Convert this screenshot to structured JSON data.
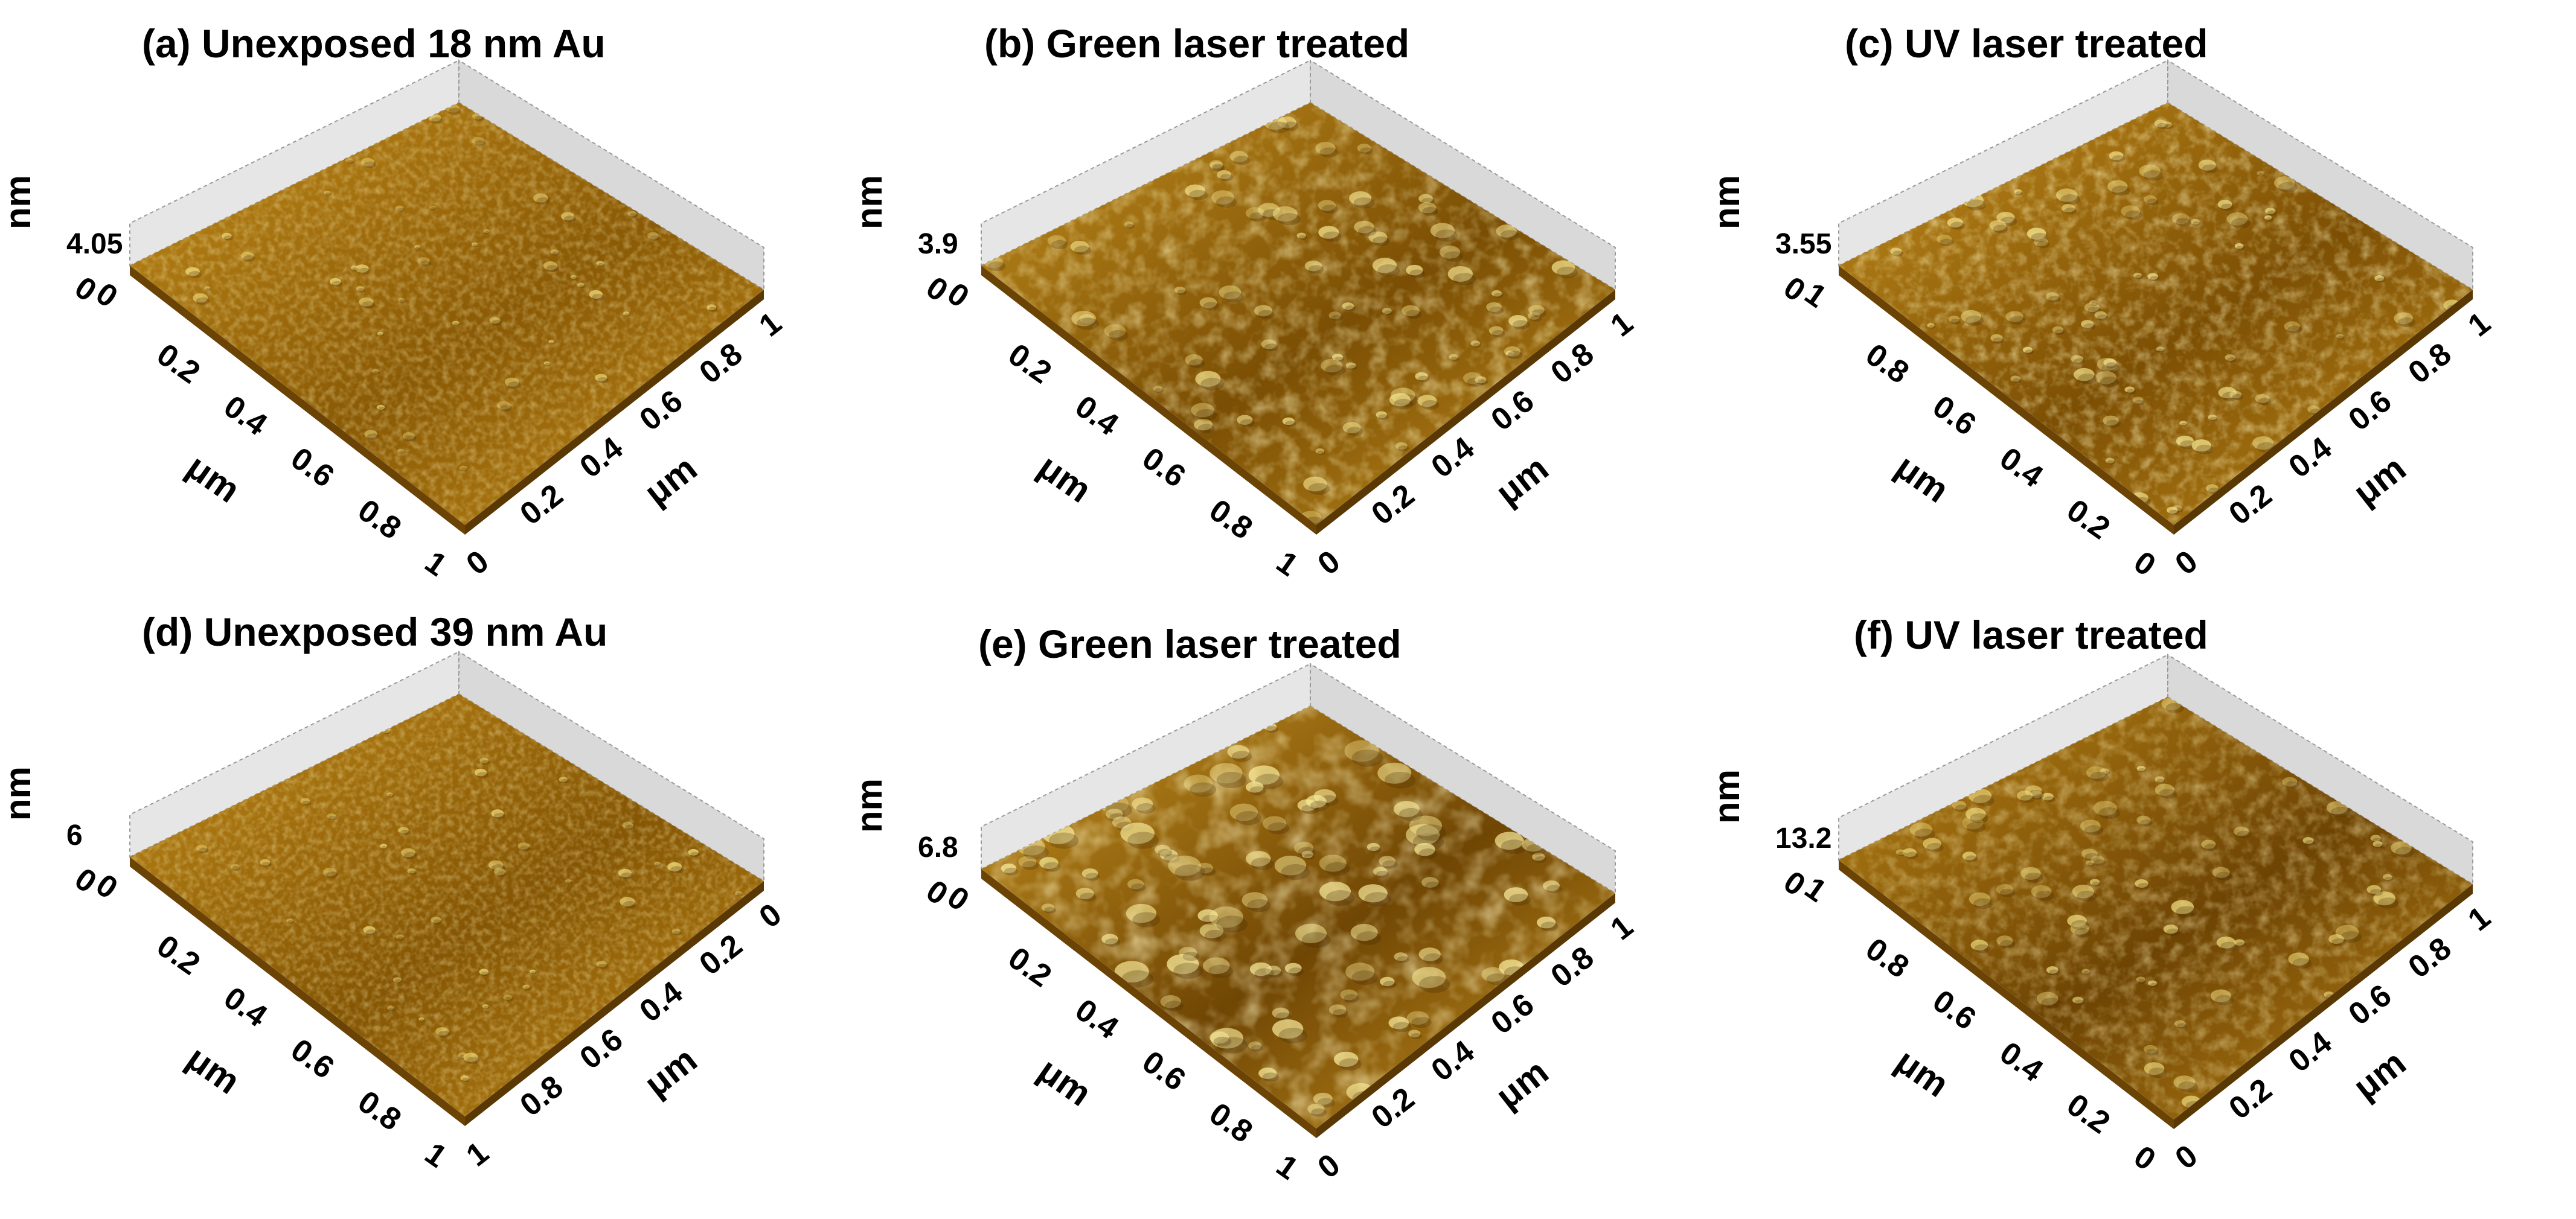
{
  "figure": {
    "panels": [
      {
        "id": "a",
        "title": "(a) Unexposed 18 nm Au",
        "z_label": "nm",
        "z_max": "4.05",
        "left_axis": {
          "label": "μm",
          "ticks": [
            "0",
            "0.2",
            "0.4",
            "0.6",
            "0.8",
            "1"
          ]
        },
        "right_axis": {
          "label": "μm",
          "ticks": [
            "0",
            "0.2",
            "0.4",
            "0.6",
            "0.8",
            "1"
          ]
        },
        "corner_origin": "0",
        "roughness": 0.55,
        "grain": 7,
        "colors": {
          "base": "#8a5a05",
          "mid": "#c08a1a",
          "high": "#f2dc7a"
        }
      },
      {
        "id": "b",
        "title": "(b) Green laser treated",
        "z_label": "nm",
        "z_max": "3.9",
        "left_axis": {
          "label": "μm",
          "ticks": [
            "0",
            "0.2",
            "0.4",
            "0.6",
            "0.8",
            "1"
          ]
        },
        "right_axis": {
          "label": "μm",
          "ticks": [
            "0",
            "0.2",
            "0.4",
            "0.6",
            "0.8",
            "1"
          ]
        },
        "corner_origin": "0",
        "roughness": 0.85,
        "grain": 12,
        "colors": {
          "base": "#7a4e04",
          "mid": "#c38f1e",
          "high": "#f7e690"
        }
      },
      {
        "id": "c",
        "title": "(c) UV laser treated",
        "z_label": "nm",
        "z_max": "3.55",
        "left_axis": {
          "label": "μm",
          "ticks": [
            "1",
            "0.8",
            "0.6",
            "0.4",
            "0.2",
            "0"
          ]
        },
        "right_axis": {
          "label": "μm",
          "ticks": [
            "0",
            "0.2",
            "0.4",
            "0.6",
            "0.8",
            "1"
          ]
        },
        "corner_origin": "0",
        "roughness": 0.8,
        "grain": 10,
        "colors": {
          "base": "#7c4f04",
          "mid": "#c38d1c",
          "high": "#f6e58d"
        }
      },
      {
        "id": "d",
        "title": "(d) Unexposed 39 nm Au",
        "z_label": "nm",
        "z_max": "6",
        "left_axis": {
          "label": "μm",
          "ticks": [
            "0",
            "0.2",
            "0.4",
            "0.6",
            "0.8",
            "1"
          ]
        },
        "right_axis": {
          "label": "μm",
          "ticks": [
            "1",
            "0.8",
            "0.6",
            "0.4",
            "0.2",
            "0"
          ]
        },
        "corner_origin": "0",
        "roughness": 0.5,
        "grain": 7,
        "colors": {
          "base": "#855604",
          "mid": "#be8818",
          "high": "#f2dc7a"
        }
      },
      {
        "id": "e",
        "title": "(e) Green laser treated",
        "z_label": "nm",
        "z_max": "6.8",
        "left_axis": {
          "label": "μm",
          "ticks": [
            "0",
            "0.2",
            "0.4",
            "0.6",
            "0.8",
            "1"
          ]
        },
        "right_axis": {
          "label": "μm",
          "ticks": [
            "0",
            "0.2",
            "0.4",
            "0.6",
            "0.8",
            "1"
          ]
        },
        "corner_origin": "0",
        "roughness": 1.0,
        "grain": 16,
        "colors": {
          "base": "#704604",
          "mid": "#c6921f",
          "high": "#f8ea9a"
        }
      },
      {
        "id": "f",
        "title": "(f) UV laser treated",
        "z_label": "nm",
        "z_max": "13.2",
        "left_axis": {
          "label": "μm",
          "ticks": [
            "1",
            "0.8",
            "0.6",
            "0.4",
            "0.2",
            "0"
          ]
        },
        "right_axis": {
          "label": "μm",
          "ticks": [
            "0",
            "0.2",
            "0.4",
            "0.6",
            "0.8",
            "1"
          ]
        },
        "corner_origin": "0",
        "roughness": 0.75,
        "grain": 11,
        "colors": {
          "base": "#6e4404",
          "mid": "#b98416",
          "high": "#f3df80"
        }
      }
    ]
  }
}
